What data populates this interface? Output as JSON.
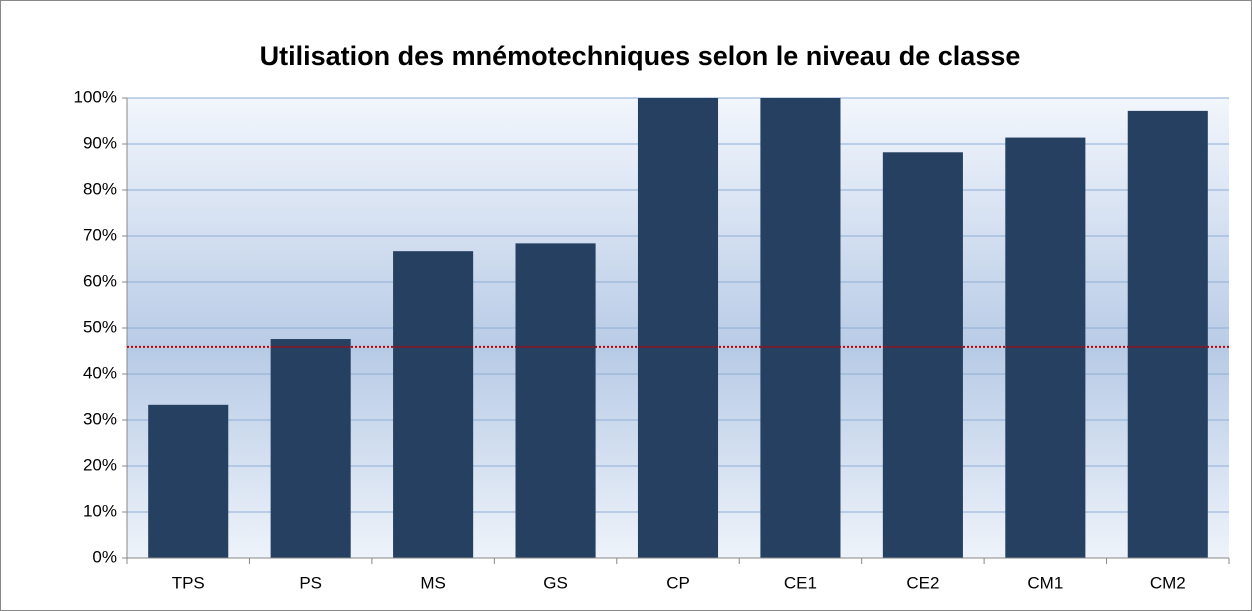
{
  "chart_data": {
    "type": "bar",
    "title": "Utilisation des mnémotechniques selon le niveau de classe",
    "categories": [
      "TPS",
      "PS",
      "MS",
      "GS",
      "CP",
      "CE1",
      "CE2",
      "CM1",
      "CM2"
    ],
    "values": [
      33.3,
      47.6,
      66.7,
      68.4,
      100,
      100,
      88.2,
      91.4,
      97.2
    ],
    "color": "#264061",
    "ylim": [
      0,
      100
    ],
    "yticks": [
      {
        "value": 0,
        "label": "0%"
      },
      {
        "value": 10,
        "label": "10%"
      },
      {
        "value": 20,
        "label": "20%"
      },
      {
        "value": 30,
        "label": "30%"
      },
      {
        "value": 40,
        "label": "40%"
      },
      {
        "value": 50,
        "label": "50%"
      },
      {
        "value": 60,
        "label": "60%"
      },
      {
        "value": 70,
        "label": "70%"
      },
      {
        "value": 80,
        "label": "80%"
      },
      {
        "value": 90,
        "label": "90%"
      },
      {
        "value": 100,
        "label": "100%"
      }
    ],
    "grid": true,
    "reference_line": {
      "value": 45.9,
      "color": "#c00000"
    }
  }
}
